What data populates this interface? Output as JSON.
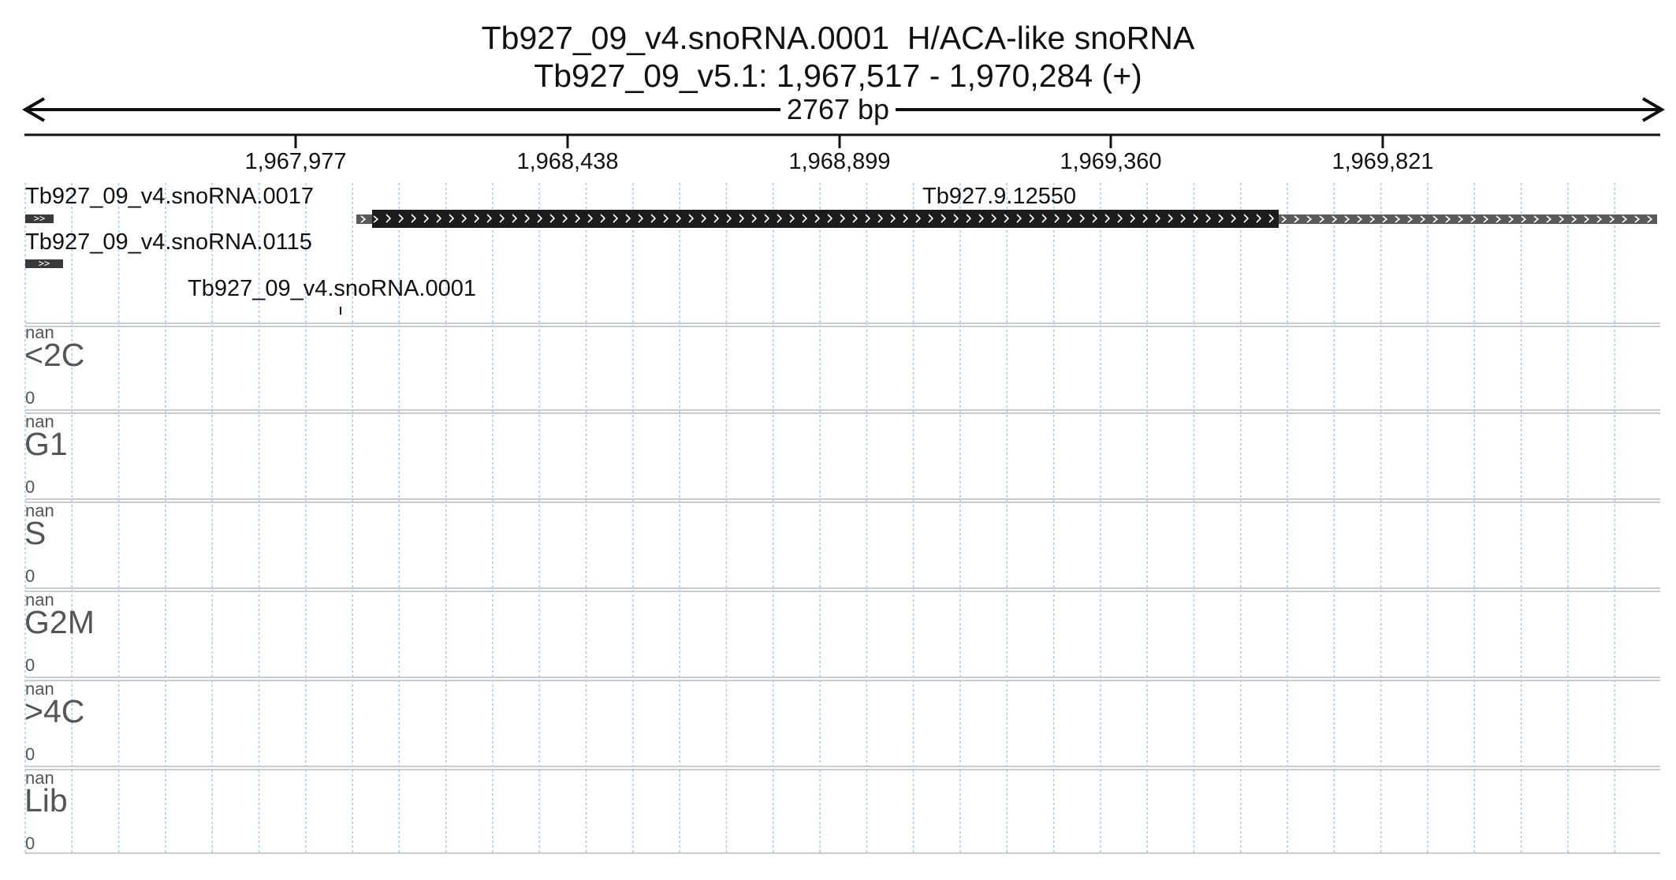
{
  "header": {
    "title": "Tb927_09_v4.snoRNA.0001  H/ACA-like snoRNA",
    "location": "Tb927_09_v5.1: 1,967,517 - 1,970,284 (+)",
    "span": "2767 bp"
  },
  "ruler": {
    "start": 1967517,
    "end": 1970284,
    "ticks": [
      "1,967,977",
      "1,968,438",
      "1,968,899",
      "1,969,360",
      "1,969,821"
    ]
  },
  "features": [
    {
      "label": "Tb927_09_v4.snoRNA.0017",
      "kind": "small_arrow"
    },
    {
      "label": "Tb927_09_v4.snoRNA.0115",
      "kind": "small_arrow"
    },
    {
      "label": "Tb927.9.12550",
      "kind": "gene"
    },
    {
      "label": "Tb927_09_v4.snoRNA.0001",
      "kind": "marker"
    }
  ],
  "tracks": [
    {
      "name": "<2C",
      "max": "nan",
      "min": "0"
    },
    {
      "name": "G1",
      "max": "nan",
      "min": "0"
    },
    {
      "name": "S",
      "max": "nan",
      "min": "0"
    },
    {
      "name": "G2M",
      "max": "nan",
      "min": "0"
    },
    {
      "name": ">4C",
      "max": "nan",
      "min": "0"
    },
    {
      "name": "Lib",
      "max": "nan",
      "min": "0"
    }
  ],
  "colors": {
    "grid": "#a9c7e6",
    "separator": "#c8ccd0",
    "feature_dark": "#1c1c1c",
    "feature_gray": "#5a5a5a",
    "track_text": "#555555"
  }
}
